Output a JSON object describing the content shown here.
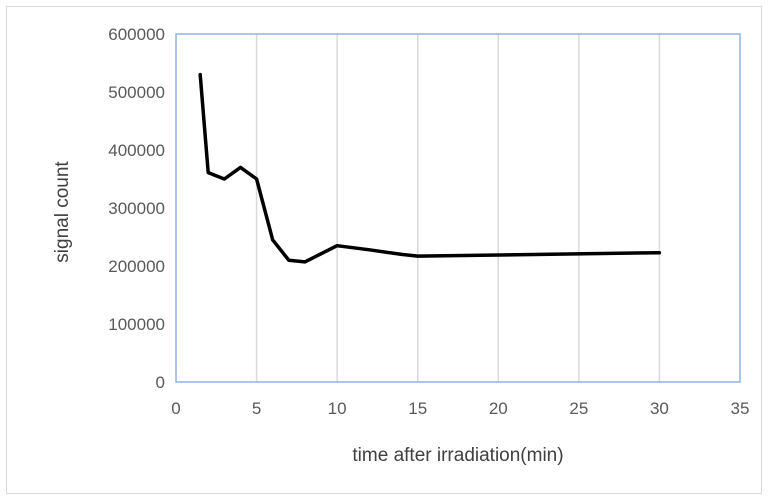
{
  "chart_data": {
    "type": "line",
    "title": "",
    "xlabel": "time after irradiation(min)",
    "ylabel": "signal count",
    "xlim": [
      0,
      35
    ],
    "ylim": [
      0,
      600000
    ],
    "x_ticks": [
      "0",
      "5",
      "10",
      "15",
      "20",
      "25",
      "30",
      "35"
    ],
    "y_ticks": [
      "0",
      "100000",
      "200000",
      "300000",
      "400000",
      "500000",
      "600000"
    ],
    "grid": "vertical",
    "legend": "none",
    "colors": {
      "line": "#000000",
      "grid": "#d9d9d9",
      "plot_border": "#8eb4e3",
      "tick_text": "#595959",
      "axis_title": "#404040"
    },
    "series": [
      {
        "x": [
          1.5,
          2,
          3,
          4,
          5,
          6,
          7,
          8,
          10,
          12,
          14,
          15,
          30
        ],
        "y": [
          530000,
          361000,
          350000,
          370000,
          350000,
          245000,
          210000,
          207000,
          235000,
          228000,
          220000,
          217000,
          223000
        ]
      }
    ]
  }
}
